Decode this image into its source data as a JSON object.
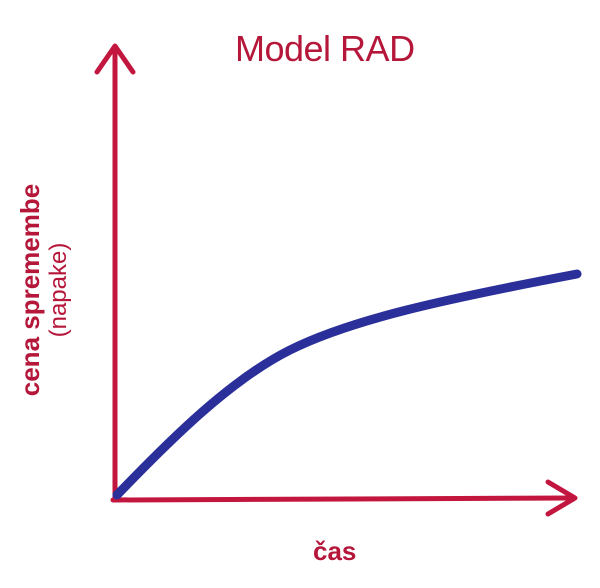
{
  "title": "Model RAD",
  "x_axis_label": "čas",
  "y_axis_label": "cena spremembe",
  "y_axis_sublabel": "(napake)",
  "colors": {
    "axis": "#c2163e",
    "curve": "#2b2f9a",
    "text": "#b5173a"
  }
}
